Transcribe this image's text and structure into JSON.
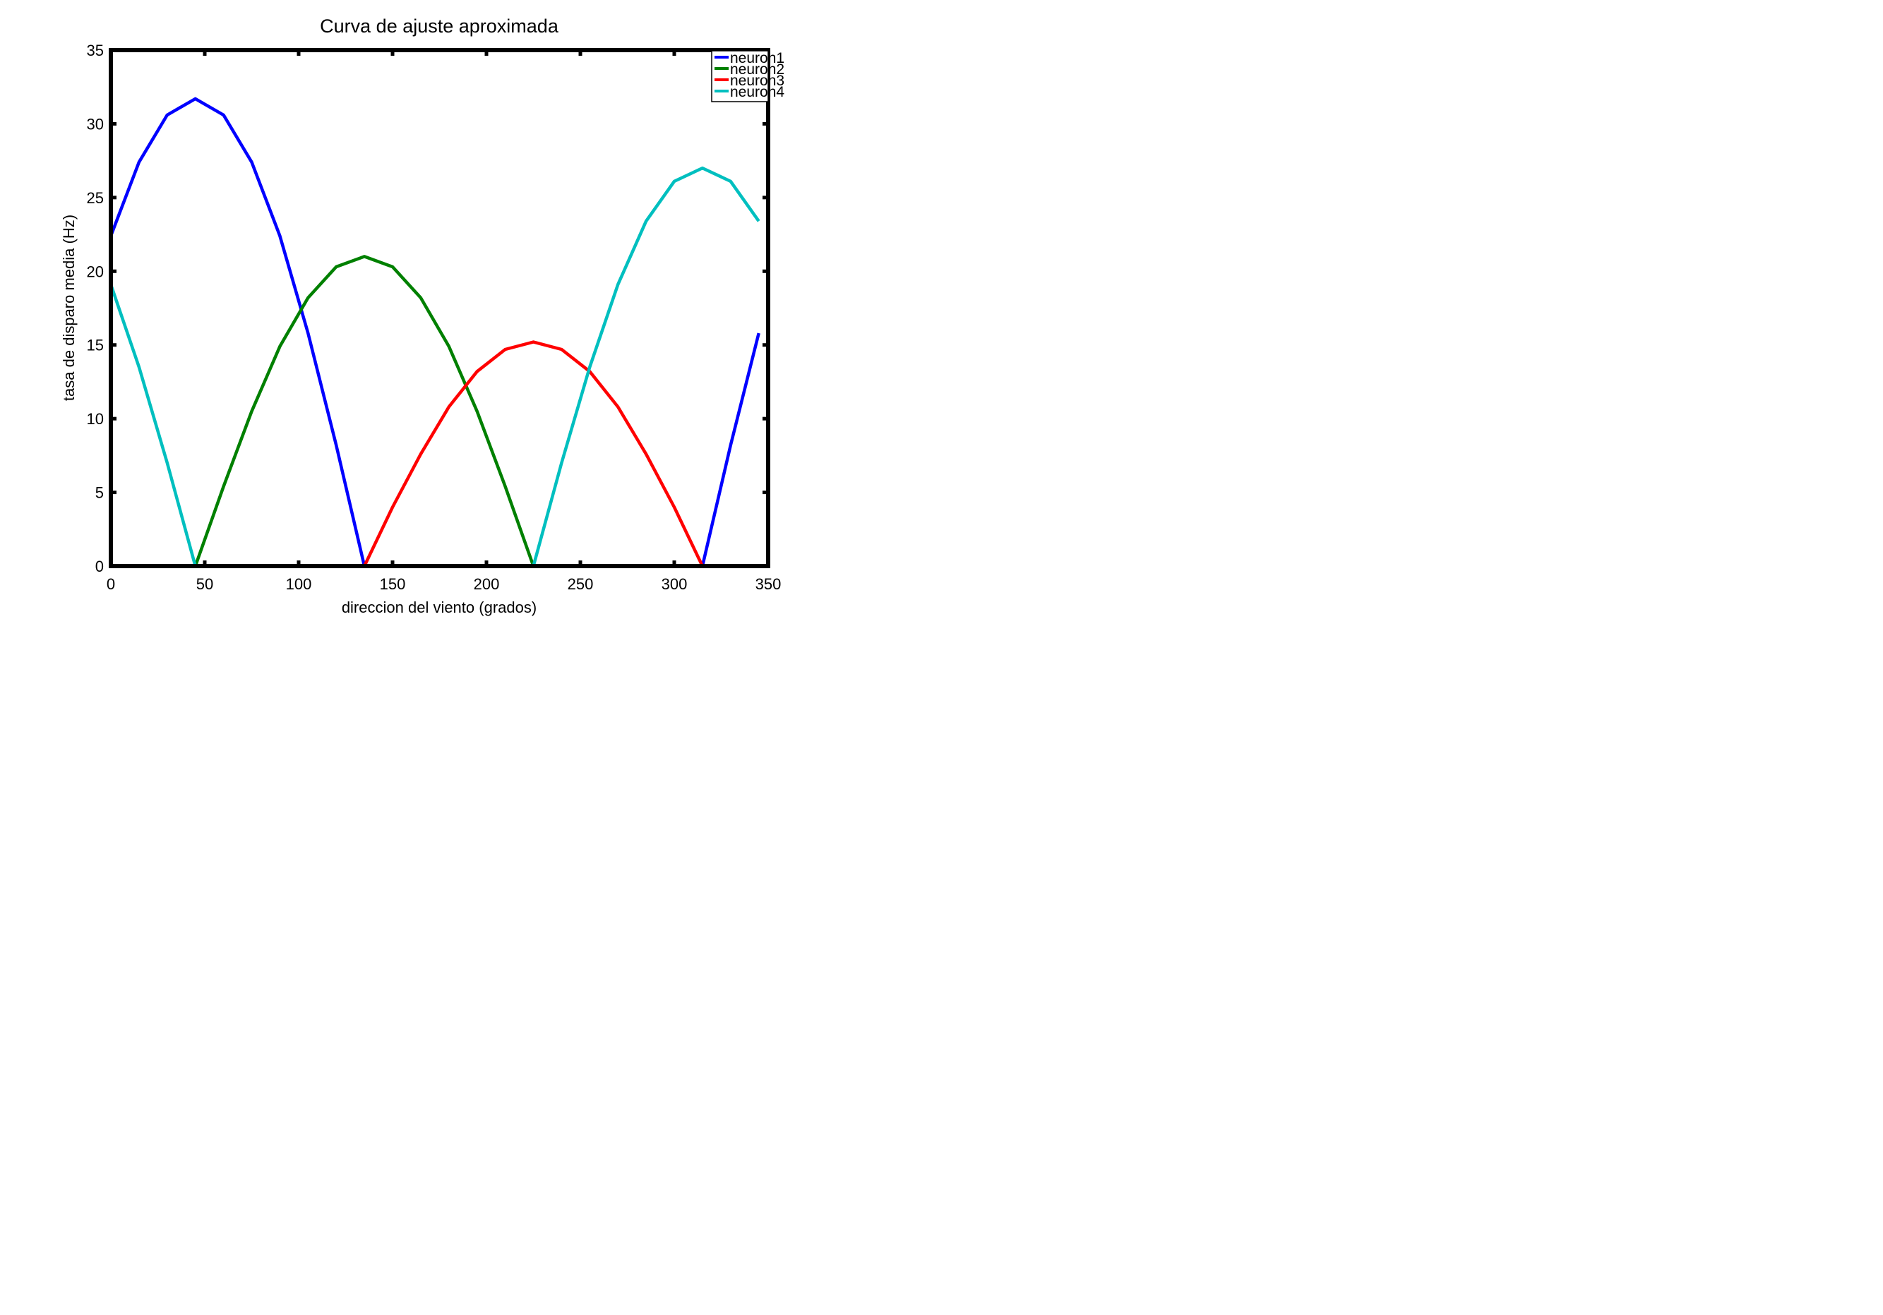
{
  "chart_data": {
    "type": "line",
    "title": "Curva de ajuste aproximada",
    "xlabel": "direccion del viento (grados)",
    "ylabel": "tasa de disparo media (Hz)",
    "xlim": [
      0,
      350
    ],
    "ylim": [
      0,
      35
    ],
    "xticks": [
      0,
      50,
      100,
      150,
      200,
      250,
      300,
      350
    ],
    "yticks": [
      0,
      5,
      10,
      15,
      20,
      25,
      30,
      35
    ],
    "grid": false,
    "legend_position": "top-right",
    "x": [
      0,
      15,
      30,
      45,
      60,
      75,
      90,
      105,
      120,
      135,
      150,
      165,
      180,
      195,
      210,
      225,
      240,
      255,
      270,
      285,
      300,
      315,
      330,
      345
    ],
    "series": [
      {
        "name": "neuron1",
        "color": "#0000ff",
        "values": [
          22.4,
          27.4,
          30.6,
          31.7,
          30.6,
          27.4,
          22.4,
          15.8,
          8.2,
          0,
          0,
          0,
          0,
          0,
          0,
          0,
          0,
          0,
          0,
          0,
          0,
          0,
          8.2,
          15.8
        ]
      },
      {
        "name": "neuron2",
        "color": "#008000",
        "values": [
          0,
          0,
          0,
          0,
          5.4,
          10.5,
          14.9,
          18.2,
          20.3,
          21.0,
          20.3,
          18.2,
          14.9,
          10.5,
          5.4,
          0,
          0,
          0,
          0,
          0,
          0,
          0,
          0,
          0
        ]
      },
      {
        "name": "neuron3",
        "color": "#ff0000",
        "values": [
          0,
          0,
          0,
          0,
          0,
          0,
          0,
          0,
          0,
          0,
          4.0,
          7.6,
          10.8,
          13.2,
          14.7,
          15.2,
          14.7,
          13.2,
          10.8,
          7.6,
          4.0,
          0,
          0,
          0
        ]
      },
      {
        "name": "neuron4",
        "color": "#00bfbf",
        "values": [
          19.1,
          13.5,
          7.0,
          0,
          0,
          0,
          0,
          0,
          0,
          0,
          0,
          0,
          0,
          0,
          0,
          0,
          7.0,
          13.5,
          19.1,
          23.4,
          26.1,
          27.0,
          26.1,
          23.4
        ]
      }
    ]
  }
}
